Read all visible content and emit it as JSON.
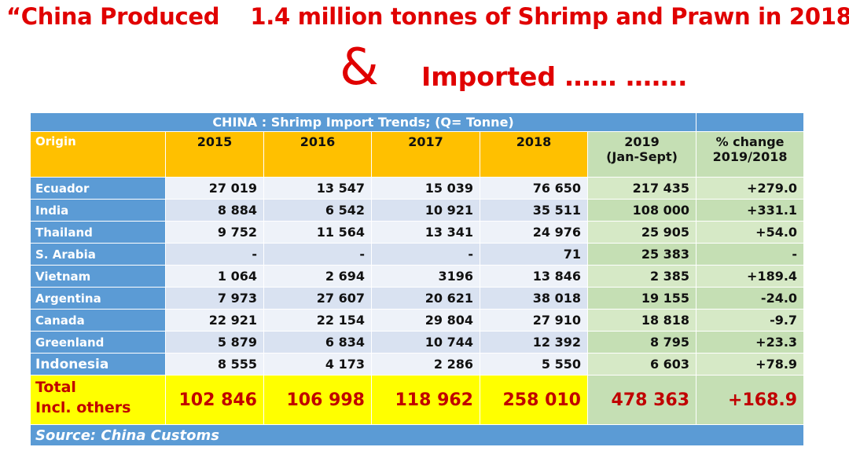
{
  "header": {
    "title": "“China Produced    1.4 million tonnes of Shrimp and Prawn in 2018 ”",
    "ampersand": "&",
    "subtitle": "Imported …… ……."
  },
  "table": {
    "caption": "CHINA :  Shrimp Import Trends;   (Q= Tonne)",
    "columns": [
      [
        "Origin"
      ],
      [
        "2015"
      ],
      [
        "2016"
      ],
      [
        "2017"
      ],
      [
        "2018"
      ],
      [
        "2019",
        "(Jan-Sept)"
      ],
      [
        "% change",
        "2019/2018"
      ]
    ],
    "rows": [
      [
        "Ecuador",
        "27 019",
        "13 547",
        "15 039",
        "76 650",
        "217 435",
        "+279.0"
      ],
      [
        "India",
        "8 884",
        "6 542",
        "10 921",
        "35 511",
        "108 000",
        "+331.1"
      ],
      [
        "Thailand",
        "9 752",
        "11 564",
        "13 341",
        "24 976",
        "25 905",
        "+54.0"
      ],
      [
        "S. Arabia",
        "-",
        "-",
        "-",
        "71",
        "25 383",
        "-"
      ],
      [
        "Vietnam",
        "1 064",
        "2 694",
        "3196",
        "13 846",
        "2 385",
        "+189.4"
      ],
      [
        "Argentina",
        "7 973",
        "27 607",
        "20 621",
        "38 018",
        "19 155",
        "-24.0"
      ],
      [
        "Canada",
        "22 921",
        "22 154",
        "29 804",
        "27 910",
        "18 818",
        "-9.7"
      ],
      [
        "Greenland",
        "5 879",
        "6 834",
        "10 744",
        "12 392",
        "8 795",
        "+23.3"
      ],
      [
        "Indonesia",
        "8 555",
        "4 173",
        "2 286",
        "5 550",
        "6 603",
        "+78.9"
      ]
    ],
    "total": {
      "label": [
        "Total",
        "Incl. others"
      ],
      "values": [
        "102 846",
        "106 998",
        "118 962",
        "258 010",
        "478 363",
        "+168.9"
      ]
    },
    "source": "Source: China Customs"
  }
}
